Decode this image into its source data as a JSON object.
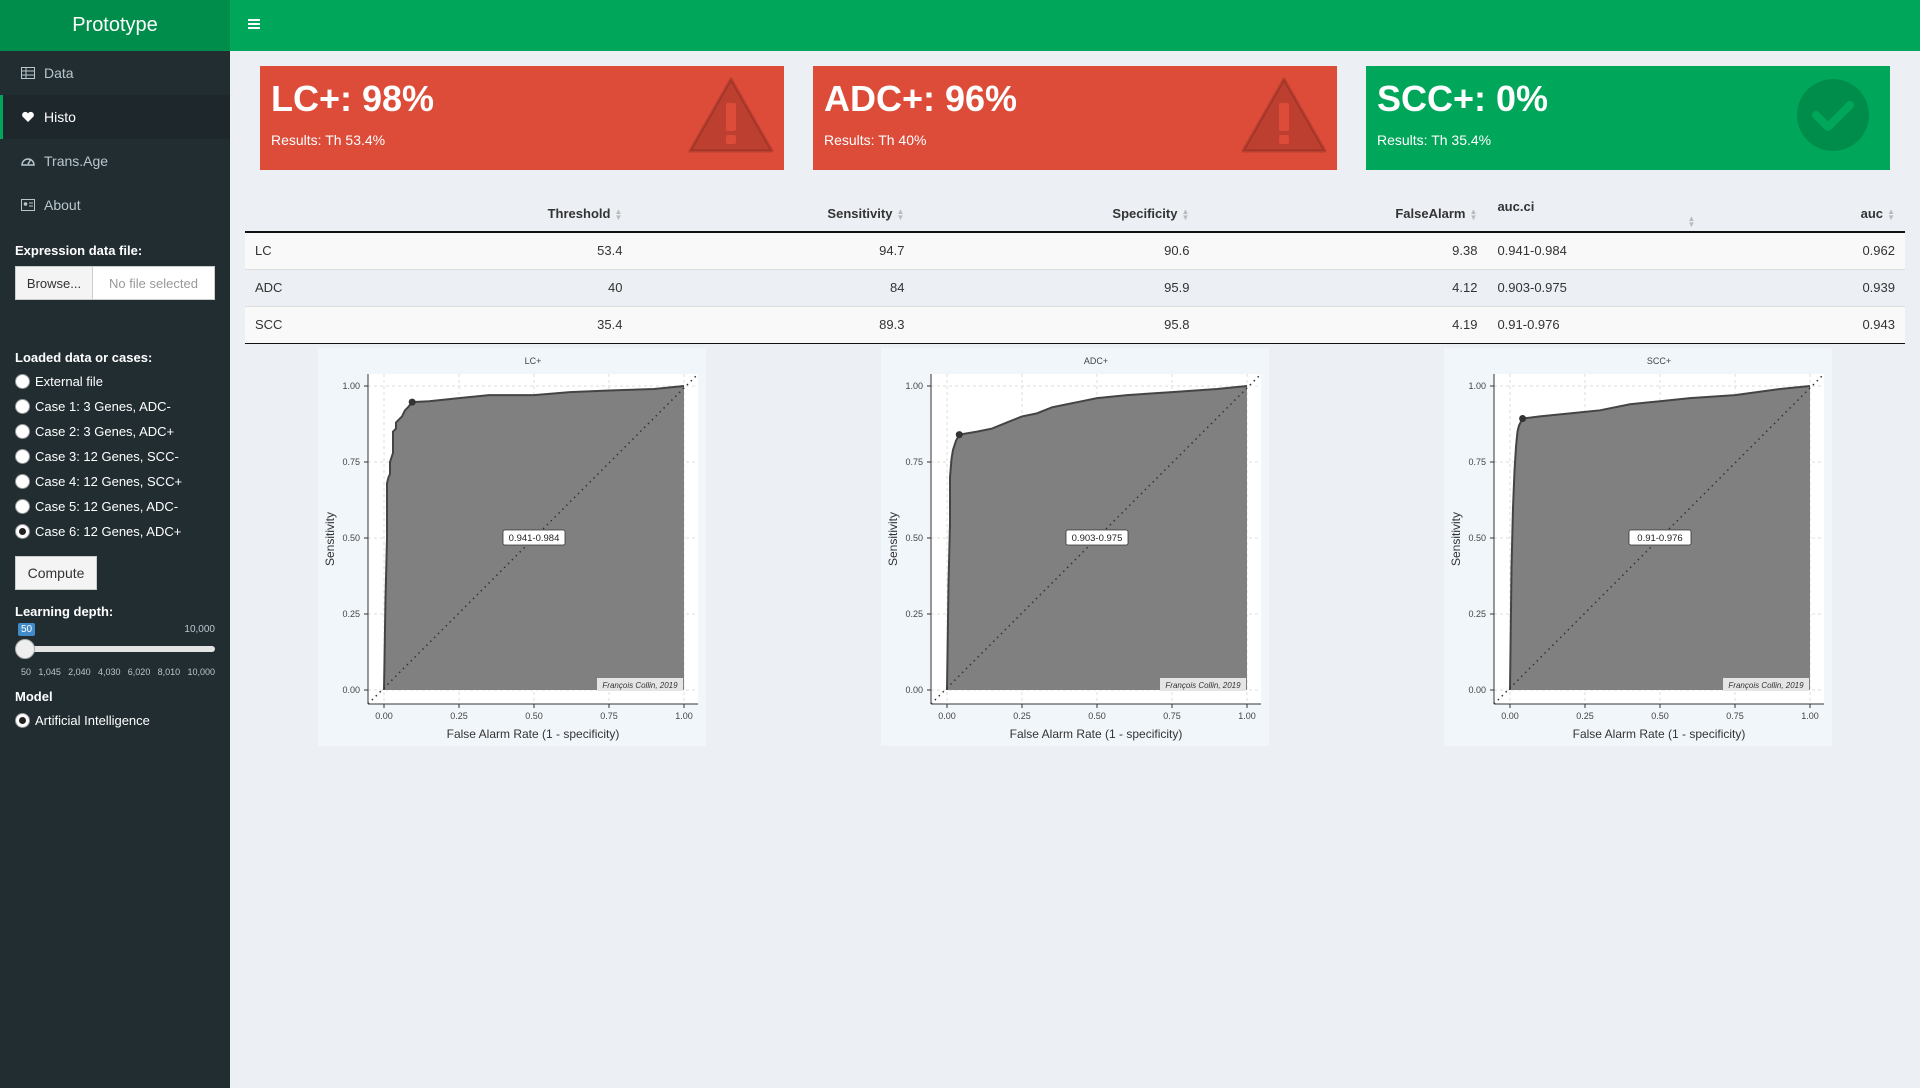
{
  "app": {
    "title": "Prototype"
  },
  "sidebar": {
    "menu": [
      {
        "label": "Data",
        "icon": "table-icon"
      },
      {
        "label": "Histo",
        "icon": "heartbeat-icon"
      },
      {
        "label": "Trans.Age",
        "icon": "dashboard-icon"
      },
      {
        "label": "About",
        "icon": "id-card-icon"
      }
    ],
    "file_label": "Expression data file:",
    "browse_label": "Browse...",
    "file_placeholder": "No file selected",
    "cases_label": "Loaded data or cases:",
    "cases": [
      {
        "label": "External file",
        "checked": false
      },
      {
        "label": "Case 1: 3 Genes, ADC-",
        "checked": false
      },
      {
        "label": "Case 2: 3 Genes, ADC+",
        "checked": false
      },
      {
        "label": "Case 3: 12 Genes, SCC-",
        "checked": false
      },
      {
        "label": "Case 4: 12 Genes, SCC+",
        "checked": false
      },
      {
        "label": "Case 5: 12 Genes, ADC-",
        "checked": false
      },
      {
        "label": "Case 6: 12 Genes, ADC+",
        "checked": true
      }
    ],
    "compute_label": "Compute",
    "depth_label": "Learning depth:",
    "slider": {
      "value": "50",
      "max": "10,000",
      "level": 0,
      "ticks": [
        "50",
        "1,045",
        "2,040",
        "4,030",
        "6,020",
        "8,010",
        "10,000"
      ]
    },
    "model_label": "Model",
    "model_option": "Artificial Intelligence"
  },
  "value_boxes": [
    {
      "value": "LC+: 98%",
      "subtitle": "Results: Th 53.4%",
      "color": "#dd4b39",
      "icon": "warning-icon"
    },
    {
      "value": "ADC+: 96%",
      "subtitle": "Results: Th 40%",
      "color": "#dd4b39",
      "icon": "warning-icon"
    },
    {
      "value": "SCC+: 0%",
      "subtitle": "Results: Th 35.4%",
      "color": "#00a65a",
      "icon": "check-circle-icon"
    }
  ],
  "table": {
    "headers": [
      "",
      "Threshold",
      "Sensitivity",
      "Specificity",
      "FalseAlarm",
      "auc.ci",
      "auc"
    ],
    "rows": [
      [
        "LC",
        "53.4",
        "94.7",
        "90.6",
        "9.38",
        "0.941-0.984",
        "0.962"
      ],
      [
        "ADC",
        "40",
        "84",
        "95.9",
        "4.12",
        "0.903-0.975",
        "0.939"
      ],
      [
        "SCC",
        "35.4",
        "89.3",
        "95.8",
        "4.19",
        "0.91-0.976",
        "0.943"
      ]
    ]
  },
  "chart_data": [
    {
      "type": "area",
      "title": "LC+",
      "xlabel": "False Alarm Rate (1 - specificity)",
      "ylabel": "Sensitivity",
      "xlim": [
        0,
        1
      ],
      "ylim": [
        0,
        1
      ],
      "ticks": [
        "0.00",
        "0.25",
        "0.50",
        "0.75",
        "1.00"
      ],
      "annotation": "0.941-0.984",
      "credit": "François Collin, 2019",
      "point": [
        0.094,
        0.947
      ],
      "x": [
        0,
        0.005,
        0.01,
        0.01,
        0.015,
        0.02,
        0.02,
        0.03,
        0.03,
        0.04,
        0.04,
        0.05,
        0.06,
        0.07,
        0.08,
        0.094,
        0.15,
        0.25,
        0.35,
        0.5,
        0.62,
        0.75,
        0.9,
        1.0
      ],
      "y": [
        0,
        0.3,
        0.5,
        0.68,
        0.7,
        0.71,
        0.75,
        0.78,
        0.85,
        0.86,
        0.88,
        0.89,
        0.9,
        0.92,
        0.93,
        0.947,
        0.95,
        0.96,
        0.97,
        0.97,
        0.98,
        0.985,
        0.99,
        1.0
      ]
    },
    {
      "type": "area",
      "title": "ADC+",
      "xlabel": "False Alarm Rate (1 - specificity)",
      "ylabel": "Sensitivity",
      "xlim": [
        0,
        1
      ],
      "ylim": [
        0,
        1
      ],
      "ticks": [
        "0.00",
        "0.25",
        "0.50",
        "0.75",
        "1.00"
      ],
      "annotation": "0.903-0.975",
      "credit": "François Collin, 2019",
      "point": [
        0.041,
        0.84
      ],
      "x": [
        0,
        0.005,
        0.01,
        0.01,
        0.015,
        0.02,
        0.03,
        0.041,
        0.1,
        0.15,
        0.2,
        0.25,
        0.3,
        0.35,
        0.4,
        0.45,
        0.5,
        0.6,
        0.75,
        0.9,
        1.0
      ],
      "y": [
        0,
        0.35,
        0.55,
        0.7,
        0.76,
        0.79,
        0.82,
        0.84,
        0.85,
        0.86,
        0.88,
        0.9,
        0.91,
        0.93,
        0.94,
        0.95,
        0.96,
        0.97,
        0.98,
        0.99,
        1.0
      ]
    },
    {
      "type": "area",
      "title": "SCC+",
      "xlabel": "False Alarm Rate (1 - specificity)",
      "ylabel": "Sensitivity",
      "xlim": [
        0,
        1
      ],
      "ylim": [
        0,
        1
      ],
      "ticks": [
        "0.00",
        "0.25",
        "0.50",
        "0.75",
        "1.00"
      ],
      "annotation": "0.91-0.976",
      "credit": "François Collin, 2019",
      "point": [
        0.042,
        0.893
      ],
      "x": [
        0,
        0.005,
        0.01,
        0.015,
        0.02,
        0.025,
        0.03,
        0.042,
        0.1,
        0.2,
        0.3,
        0.4,
        0.5,
        0.6,
        0.75,
        0.9,
        1.0
      ],
      "y": [
        0,
        0.4,
        0.6,
        0.72,
        0.8,
        0.85,
        0.87,
        0.893,
        0.9,
        0.91,
        0.92,
        0.94,
        0.95,
        0.96,
        0.97,
        0.99,
        1.0
      ]
    }
  ]
}
